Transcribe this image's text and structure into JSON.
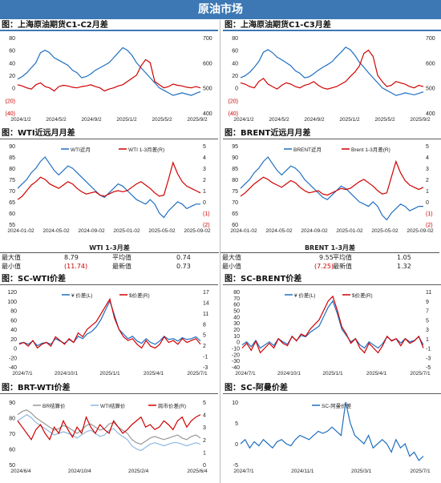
{
  "page_title": "原油市场",
  "colors": {
    "banner": "#3d78b4",
    "blue": "#1f6fc0",
    "red": "#d00000",
    "gray": "#999999",
    "lightblue": "#8db8df"
  },
  "stats": [
    {
      "title": "WTI 1-3月差",
      "max_label": "最大值",
      "max": "8.79",
      "min_label": "最小值",
      "min": "(11.74)",
      "avg_label": "平均值",
      "avg": "0.74",
      "last_label": "最新值",
      "last": "0.73"
    },
    {
      "title": "BRENT 1-3月差",
      "max_label": "最大值",
      "max": "9.55",
      "min_label": "最小值",
      "min": "(7.25)",
      "avg_label": "平均值",
      "avg": "1.05",
      "last_label": "最新值",
      "last": "1.32"
    }
  ],
  "chart_data": [
    {
      "id": "c1",
      "type": "line",
      "title": "图：上海原油期货C1-C2月差",
      "x_ticks": [
        "2024/1/2",
        "2024/5/2",
        "2024/9/2",
        "2025/1/2",
        "2025/5/2",
        "2025/9/2"
      ],
      "y_left": {
        "range": [
          -40,
          80
        ],
        "ticks": [
          "80",
          "60",
          "40",
          "20",
          "0",
          "(20)",
          "(40)"
        ]
      },
      "y_right": {
        "range": [
          400,
          700
        ],
        "ticks": [
          "700",
          "600",
          "500",
          "400"
        ]
      },
      "series": [
        {
          "axis": "right",
          "color": "#1f6fc0",
          "values": [
            535,
            545,
            560,
            580,
            600,
            640,
            650,
            640,
            620,
            610,
            600,
            590,
            570,
            560,
            540,
            545,
            555,
            570,
            580,
            590,
            600,
            620,
            640,
            660,
            650,
            630,
            600,
            580,
            560,
            540,
            520,
            500,
            490,
            480,
            470,
            475,
            480,
            475,
            470,
            478,
            485
          ]
        },
        {
          "axis": "left",
          "color": "#d00000",
          "values": [
            5,
            3,
            0,
            -2,
            5,
            8,
            2,
            0,
            -5,
            2,
            4,
            3,
            1,
            0,
            2,
            3,
            5,
            2,
            0,
            -5,
            -2,
            0,
            3,
            5,
            10,
            15,
            20,
            35,
            45,
            40,
            10,
            5,
            0,
            2,
            6,
            4,
            3,
            1,
            0,
            2,
            0
          ]
        }
      ]
    },
    {
      "id": "c2",
      "type": "line",
      "title": "图：上海原油期货C1-C3月差",
      "x_ticks": [
        "2024/1/2",
        "2024/5/2",
        "2024/9/2",
        "2025/1/2",
        "2025/5/2",
        "2025/9/2"
      ],
      "y_left": {
        "range": [
          -40,
          80
        ],
        "ticks": [
          "80",
          "60",
          "40",
          "20",
          "0",
          "(20)",
          "(40)"
        ]
      },
      "y_right": {
        "range": [
          400,
          700
        ],
        "ticks": [
          "700",
          "600",
          "500",
          "400"
        ]
      },
      "series": [
        {
          "axis": "right",
          "color": "#1f6fc0",
          "values": [
            540,
            548,
            562,
            582,
            605,
            642,
            652,
            640,
            622,
            612,
            600,
            588,
            568,
            558,
            540,
            544,
            556,
            570,
            582,
            592,
            604,
            624,
            642,
            662,
            652,
            630,
            602,
            582,
            560,
            540,
            520,
            500,
            490,
            480,
            470,
            474,
            480,
            476,
            472,
            478,
            484
          ]
        },
        {
          "axis": "left",
          "color": "#d00000",
          "values": [
            8,
            6,
            2,
            0,
            10,
            15,
            6,
            2,
            -2,
            4,
            8,
            6,
            2,
            0,
            4,
            6,
            10,
            4,
            0,
            -2,
            0,
            2,
            6,
            10,
            18,
            25,
            35,
            55,
            60,
            50,
            20,
            10,
            2,
            4,
            10,
            8,
            6,
            2,
            0,
            4,
            2
          ]
        }
      ]
    },
    {
      "id": "c3",
      "type": "line",
      "title": "图：WTI近远月月差",
      "legend": [
        {
          "name": "WTI近月",
          "color": "#1f6fc0"
        },
        {
          "name": "WTI 1-3月差(R)",
          "color": "#d00000"
        }
      ],
      "x_ticks": [
        "2024-01-02",
        "2024-05-02",
        "2024-09-02",
        "2025-01-02",
        "2025-05-02",
        "2025-09-02"
      ],
      "y_left": {
        "range": [
          55,
          90
        ],
        "ticks": [
          "90",
          "85",
          "80",
          "75",
          "70",
          "65",
          "60",
          "55"
        ]
      },
      "y_right": {
        "range": [
          -2,
          5
        ],
        "ticks": [
          "5",
          "4",
          "3",
          "2",
          "1",
          "0",
          "(1)",
          "(2)"
        ]
      },
      "series": [
        {
          "axis": "left",
          "color": "#1f6fc0",
          "values": [
            71,
            73,
            75,
            78,
            80,
            83,
            85,
            82,
            79,
            77,
            79,
            81,
            80,
            78,
            76,
            74,
            72,
            70,
            68,
            67,
            69,
            71,
            73,
            72,
            70,
            68,
            66,
            65,
            64,
            66,
            64,
            60,
            58,
            61,
            63,
            65,
            64,
            62,
            63,
            64,
            64
          ]
        },
        {
          "axis": "right",
          "color": "#d00000",
          "values": [
            0.2,
            0.5,
            1.0,
            1.5,
            1.8,
            2.2,
            2.0,
            1.6,
            1.4,
            1.2,
            1.5,
            1.8,
            1.6,
            1.2,
            0.9,
            0.7,
            0.8,
            0.9,
            0.6,
            0.5,
            0.7,
            0.9,
            1.0,
            0.9,
            1.0,
            1.3,
            1.6,
            1.8,
            1.5,
            1.2,
            0.8,
            0.5,
            0.6,
            2.0,
            3.5,
            2.5,
            1.8,
            1.4,
            1.2,
            1.0,
            0.8
          ]
        }
      ]
    },
    {
      "id": "c4",
      "type": "line",
      "title": "图：BRENT近远月月差",
      "legend": [
        {
          "name": "BRENT近月",
          "color": "#1f6fc0"
        },
        {
          "name": "Brent 1-3月差(R)",
          "color": "#d00000"
        }
      ],
      "x_ticks": [
        "2024-01-02",
        "2024-05-02",
        "2024-09-02",
        "2025-01-02",
        "2025-05-02",
        "2025-09-02"
      ],
      "y_left": {
        "range": [
          60,
          95
        ],
        "ticks": [
          "95",
          "90",
          "85",
          "80",
          "75",
          "70",
          "65",
          "60"
        ]
      },
      "y_right": {
        "range": [
          -2,
          5
        ],
        "ticks": [
          "5",
          "4",
          "3",
          "2",
          "1",
          "0",
          "(1)",
          "(2)"
        ]
      },
      "series": [
        {
          "axis": "left",
          "color": "#1f6fc0",
          "values": [
            76,
            78,
            80,
            83,
            85,
            88,
            90,
            87,
            84,
            82,
            84,
            86,
            85,
            83,
            80,
            78,
            76,
            74,
            72,
            71,
            73,
            75,
            77,
            76,
            74,
            72,
            70,
            69,
            68,
            70,
            68,
            64,
            62,
            65,
            67,
            69,
            68,
            66,
            67,
            68,
            68
          ]
        },
        {
          "axis": "right",
          "color": "#d00000",
          "values": [
            0.5,
            0.8,
            1.2,
            1.6,
            1.9,
            2.2,
            2.0,
            1.7,
            1.5,
            1.3,
            1.6,
            1.9,
            1.7,
            1.3,
            1.0,
            0.8,
            0.9,
            1.0,
            0.7,
            0.6,
            0.8,
            1.0,
            1.2,
            1.1,
            1.2,
            1.5,
            1.8,
            2.0,
            1.7,
            1.4,
            1.0,
            0.7,
            0.8,
            2.2,
            3.6,
            2.6,
            1.9,
            1.5,
            1.3,
            1.1,
            1.3
          ]
        }
      ]
    },
    {
      "id": "c5",
      "type": "line",
      "title": "图：SC-WTI价差",
      "legend": [
        {
          "name": "¥ 价差(L)",
          "color": "#1f6fc0"
        },
        {
          "name": "$价差(R)",
          "color": "#d00000"
        }
      ],
      "x_ticks": [
        "2024/7/1",
        "2024/10/1",
        "2025/1/1",
        "2025/4/1",
        "2025/7/1"
      ],
      "y_left": {
        "range": [
          -40,
          120
        ],
        "ticks": [
          "120",
          "100",
          "80",
          "60",
          "40",
          "20",
          "0",
          "-20",
          "-40"
        ]
      },
      "y_right": {
        "range": [
          -3,
          17
        ],
        "ticks": [
          "17",
          "14",
          "11",
          "8",
          "5",
          "2",
          "-1",
          "-3"
        ]
      },
      "series": [
        {
          "axis": "left",
          "color": "#1f6fc0",
          "values": [
            10,
            12,
            8,
            15,
            5,
            10,
            12,
            8,
            20,
            15,
            10,
            18,
            12,
            25,
            20,
            30,
            35,
            45,
            60,
            80,
            100,
            70,
            40,
            30,
            20,
            25,
            15,
            10,
            20,
            12,
            8,
            15,
            25,
            18,
            20,
            15,
            22,
            18,
            20,
            24,
            15
          ]
        },
        {
          "axis": "right",
          "color": "#d00000",
          "values": [
            3,
            3.5,
            2.5,
            4,
            2,
            3,
            3.5,
            2.5,
            5,
            4,
            3,
            4.5,
            3.5,
            6,
            5,
            7,
            8,
            9,
            11,
            13,
            15,
            10,
            7,
            5,
            4,
            4.5,
            3,
            2,
            4,
            2.5,
            2,
            3,
            5,
            3.5,
            4,
            3,
            4.5,
            3.5,
            4,
            4.5,
            3
          ]
        }
      ]
    },
    {
      "id": "c6",
      "type": "line",
      "title": "图：SC-BRENT价差",
      "legend": [
        {
          "name": "¥ 价差(L)",
          "color": "#1f6fc0"
        },
        {
          "name": "$价差(R)",
          "color": "#d00000"
        }
      ],
      "x_ticks": [
        "2024/7/1",
        "2024/10/1",
        "2025/1/1",
        "2025/4/1",
        "2025/7/1"
      ],
      "y_left": {
        "range": [
          -40,
          80
        ],
        "ticks": [
          "80",
          "70",
          "60",
          "50",
          "40",
          "30",
          "20",
          "10",
          "0",
          "-10",
          "-20",
          "-30",
          "-40"
        ]
      },
      "y_right": {
        "range": [
          -5,
          11
        ],
        "ticks": [
          "11",
          "9",
          "7",
          "5",
          "3",
          "1",
          "-1",
          "-3",
          "-5"
        ]
      },
      "series": [
        {
          "axis": "left",
          "color": "#1f6fc0",
          "values": [
            -5,
            0,
            -8,
            2,
            -10,
            -5,
            0,
            -6,
            5,
            0,
            -4,
            8,
            2,
            10,
            8,
            15,
            20,
            25,
            40,
            55,
            65,
            45,
            20,
            10,
            0,
            5,
            -5,
            -10,
            0,
            -5,
            -10,
            -3,
            8,
            2,
            5,
            -2,
            5,
            0,
            2,
            8,
            -5
          ]
        },
        {
          "axis": "right",
          "color": "#d00000",
          "values": [
            -1,
            0,
            -1.5,
            0.5,
            -2,
            -1,
            0,
            -1,
            1,
            0,
            -0.5,
            1.5,
            0.5,
            2,
            1.5,
            3,
            4,
            5,
            7,
            9,
            10,
            7,
            3.5,
            2,
            0,
            1,
            -1,
            -2,
            0,
            -1,
            -2,
            -0.5,
            1.5,
            0.5,
            1,
            -0.5,
            1,
            0,
            0.5,
            1.5,
            -1
          ]
        }
      ]
    },
    {
      "id": "c7",
      "type": "line",
      "title": "图：BRT-WTI价差",
      "legend": [
        {
          "name": "BR结算价",
          "color": "#999999"
        },
        {
          "name": "WTI结算价",
          "color": "#8db8df"
        },
        {
          "name": "跨市价差(R)",
          "color": "#d00000"
        }
      ],
      "x_ticks": [
        "2024/6/4",
        "2024/10/4",
        "2025/2/4",
        "2025/6/4"
      ],
      "y_left": {
        "range": [
          50,
          90
        ],
        "ticks": [
          "90",
          "80",
          "70",
          "60",
          "50"
        ]
      },
      "y_right": {
        "range": [
          0,
          5
        ],
        "ticks": [
          "5",
          "4",
          "3",
          "2",
          "1",
          "0"
        ]
      },
      "series": [
        {
          "axis": "left",
          "color": "#999999",
          "values": [
            82,
            84,
            85,
            83,
            80,
            78,
            76,
            74,
            72,
            73,
            75,
            74,
            72,
            70,
            72,
            75,
            76,
            74,
            72,
            73,
            76,
            77,
            74,
            72,
            70,
            66,
            64,
            63,
            65,
            67,
            68,
            67,
            66,
            67,
            68,
            69,
            67,
            66,
            68,
            69,
            67
          ]
        },
        {
          "axis": "left",
          "color": "#8db8df",
          "values": [
            78,
            80,
            82,
            80,
            77,
            75,
            73,
            71,
            69,
            70,
            71,
            70,
            69,
            67,
            69,
            71,
            72,
            70,
            68,
            69,
            72,
            73,
            70,
            68,
            66,
            62,
            60,
            59,
            61,
            63,
            64,
            63,
            62,
            63,
            64,
            64,
            63,
            62,
            63,
            64,
            63
          ]
        },
        {
          "axis": "right",
          "color": "#d00000",
          "values": [
            3.5,
            3.0,
            2.5,
            2.0,
            2.8,
            3.2,
            2.5,
            2.0,
            3.0,
            2.5,
            3.5,
            2.8,
            2.2,
            3.0,
            2.5,
            3.8,
            3.0,
            2.5,
            3.2,
            2.8,
            2.5,
            3.5,
            3.0,
            2.5,
            2.8,
            3.2,
            3.5,
            3.8,
            3.0,
            3.2,
            2.8,
            3.0,
            3.5,
            3.2,
            2.8,
            3.5,
            3.8,
            3.0,
            3.5,
            3.8,
            4.0
          ]
        }
      ]
    },
    {
      "id": "c8",
      "type": "line",
      "title": "图：SC-阿曼价差",
      "legend": [
        {
          "name": "SC-阿曼价差",
          "color": "#1f6fc0"
        }
      ],
      "x_ticks": [
        "2024/7/1",
        "2024/11/1",
        "2025/3/1",
        "2025/7/1"
      ],
      "y_left": {
        "range": [
          -5,
          10
        ],
        "ticks": [
          "10",
          "5",
          "0",
          "-5"
        ]
      },
      "series": [
        {
          "axis": "left",
          "color": "#1f6fc0",
          "values": [
            0,
            1,
            -1,
            0.5,
            -0.5,
            1,
            0,
            -1,
            0.5,
            1,
            0,
            -0.5,
            1,
            2,
            1.5,
            1,
            2,
            3,
            2.5,
            3,
            4,
            3,
            2,
            10,
            5,
            2,
            1,
            0,
            2,
            -1,
            0,
            1,
            0,
            -2,
            1,
            -1,
            0,
            -3,
            -2,
            -4,
            -3
          ]
        }
      ]
    }
  ]
}
